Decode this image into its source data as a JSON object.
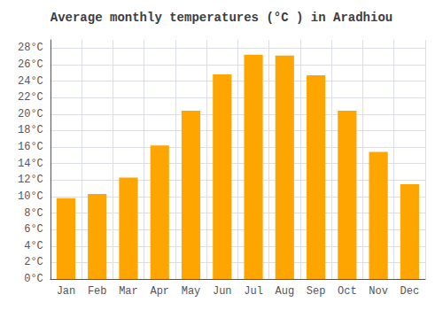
{
  "chart_data": {
    "type": "bar",
    "title": "Average monthly temperatures (°C ) in Aradhiou",
    "categories": [
      "Jan",
      "Feb",
      "Mar",
      "Apr",
      "May",
      "Jun",
      "Jul",
      "Aug",
      "Sep",
      "Oct",
      "Nov",
      "Dec"
    ],
    "values": [
      9.8,
      10.3,
      12.3,
      16.2,
      20.4,
      24.8,
      27.2,
      27.1,
      24.7,
      20.4,
      15.4,
      11.5
    ],
    "color": "#FFA500",
    "ylim": [
      0,
      29
    ],
    "yticks": [
      {
        "value": 0,
        "label": "0°C"
      },
      {
        "value": 2,
        "label": "2°C"
      },
      {
        "value": 4,
        "label": "4°C"
      },
      {
        "value": 6,
        "label": "6°C"
      },
      {
        "value": 8,
        "label": "8°C"
      },
      {
        "value": 10,
        "label": "10°C"
      },
      {
        "value": 12,
        "label": "12°C"
      },
      {
        "value": 14,
        "label": "14°C"
      },
      {
        "value": 16,
        "label": "16°C"
      },
      {
        "value": 18,
        "label": "18°C"
      },
      {
        "value": 20,
        "label": "20°C"
      },
      {
        "value": 22,
        "label": "22°C"
      },
      {
        "value": 24,
        "label": "24°C"
      },
      {
        "value": 26,
        "label": "26°C"
      },
      {
        "value": 28,
        "label": "28°C"
      }
    ],
    "grid": true
  }
}
